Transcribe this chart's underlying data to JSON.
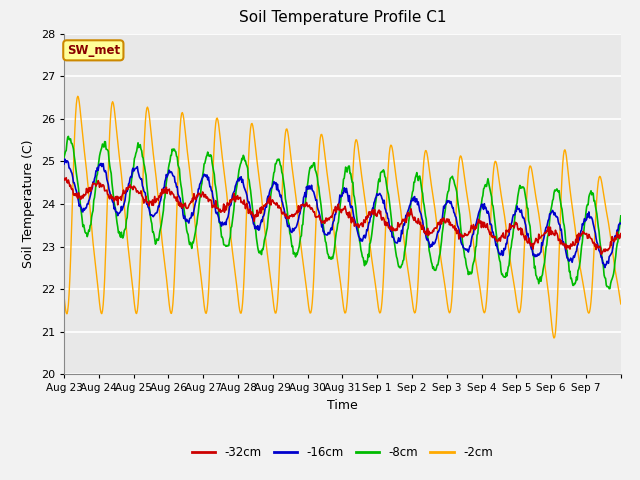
{
  "title": "Soil Temperature Profile C1",
  "xlabel": "Time",
  "ylabel": "Soil Temperature (C)",
  "ylim": [
    20.0,
    28.0
  ],
  "yticks": [
    20.0,
    21.0,
    22.0,
    23.0,
    24.0,
    25.0,
    26.0,
    27.0,
    28.0
  ],
  "x_labels": [
    "Aug 23",
    "Aug 24",
    "Aug 25",
    "Aug 26",
    "Aug 27",
    "Aug 28",
    "Aug 29",
    "Aug 30",
    "Aug 31",
    "Sep 1",
    "Sep 2",
    "Sep 3",
    "Sep 4",
    "Sep 5",
    "Sep 6",
    "Sep 7"
  ],
  "legend_labels": [
    "-32cm",
    "-16cm",
    "-8cm",
    "-2cm"
  ],
  "legend_colors": [
    "#cc0000",
    "#0000cc",
    "#00bb00",
    "#ffaa00"
  ],
  "line_colors": [
    "#cc0000",
    "#0000cc",
    "#00bb00",
    "#ffaa00"
  ],
  "annotation_text": "SW_met",
  "annotation_bg": "#ffff99",
  "annotation_border": "#cc8800",
  "annotation_text_color": "#880000",
  "background_color": "#e8e8e8",
  "fig_bg": "#f2f2f2",
  "grid_color": "#ffffff",
  "figsize": [
    6.4,
    4.8
  ],
  "dpi": 100
}
